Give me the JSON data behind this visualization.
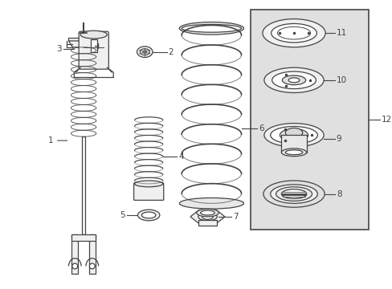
{
  "background_color": "#ffffff",
  "line_color": "#444444",
  "box_fill": "#e0e0e0",
  "fig_width": 4.89,
  "fig_height": 3.6,
  "dpi": 100
}
